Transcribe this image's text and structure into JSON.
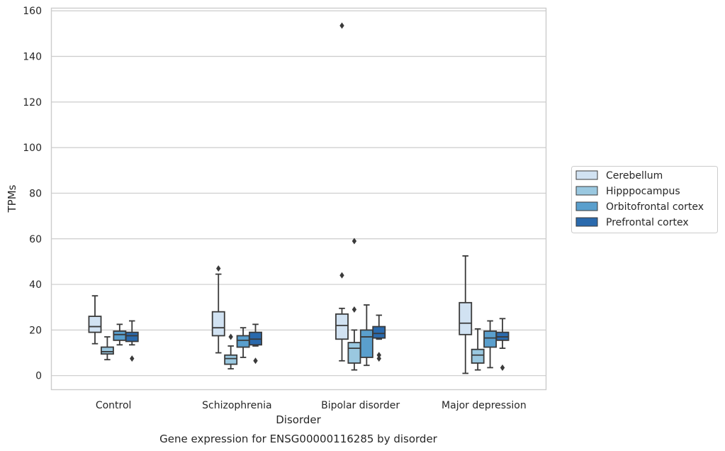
{
  "chart_data": {
    "type": "box",
    "caption": "Gene expression for ENSG00000116285 by disorder",
    "xlabel": "Disorder",
    "ylabel": "TPMs",
    "ylim": [
      -6,
      161
    ],
    "yticks": [
      0,
      20,
      40,
      60,
      80,
      100,
      120,
      140,
      160
    ],
    "grid": true,
    "legend_position": "right",
    "categories": [
      "Control",
      "Schizophrenia",
      "Bipolar disorder",
      "Major depression"
    ],
    "series": [
      {
        "name": "Cerebellum",
        "color": "#d1e2f2",
        "boxes": [
          {
            "whislo": 14,
            "q1": 19,
            "med": 21.5,
            "q3": 26,
            "whishi": 35,
            "fliers": []
          },
          {
            "whislo": 10,
            "q1": 17.5,
            "med": 21,
            "q3": 28,
            "whishi": 44.5,
            "fliers": [
              47
            ]
          },
          {
            "whislo": 6.5,
            "q1": 16,
            "med": 22,
            "q3": 27,
            "whishi": 29.5,
            "fliers": [
              44,
              153.5
            ]
          },
          {
            "whislo": 1,
            "q1": 18,
            "med": 23,
            "q3": 32,
            "whishi": 52.5,
            "fliers": []
          }
        ]
      },
      {
        "name": "Hipppocampus",
        "color": "#9ac8e0",
        "boxes": [
          {
            "whislo": 7,
            "q1": 9.5,
            "med": 10.5,
            "q3": 12.5,
            "whishi": 17,
            "fliers": []
          },
          {
            "whislo": 3,
            "q1": 5,
            "med": 7.5,
            "q3": 9,
            "whishi": 13,
            "fliers": [
              17
            ]
          },
          {
            "whislo": 2.5,
            "q1": 5.5,
            "med": 12,
            "q3": 14.5,
            "whishi": 20,
            "fliers": [
              29,
              59
            ]
          },
          {
            "whislo": 2.5,
            "q1": 5.5,
            "med": 9,
            "q3": 11.5,
            "whishi": 20.5,
            "fliers": []
          }
        ]
      },
      {
        "name": "Orbitofrontal cortex",
        "color": "#5a9fcd",
        "boxes": [
          {
            "whislo": 13.5,
            "q1": 15.5,
            "med": 18,
            "q3": 19.5,
            "whishi": 22.5,
            "fliers": []
          },
          {
            "whislo": 8,
            "q1": 12.5,
            "med": 15.5,
            "q3": 17.5,
            "whishi": 21,
            "fliers": []
          },
          {
            "whislo": 4.5,
            "q1": 8,
            "med": 17,
            "q3": 20,
            "whishi": 31,
            "fliers": []
          },
          {
            "whislo": 3.5,
            "q1": 12.5,
            "med": 16.5,
            "q3": 19.5,
            "whishi": 24,
            "fliers": []
          }
        ]
      },
      {
        "name": "Prefrontal cortex",
        "color": "#2a6aad",
        "boxes": [
          {
            "whislo": 13.5,
            "q1": 15,
            "med": 17.5,
            "q3": 19,
            "whishi": 24,
            "fliers": [
              7.5
            ]
          },
          {
            "whislo": 13,
            "q1": 13.5,
            "med": 16,
            "q3": 19,
            "whishi": 22.5,
            "fliers": [
              6.5
            ]
          },
          {
            "whislo": 16,
            "q1": 16.5,
            "med": 18.5,
            "q3": 21.5,
            "whishi": 26.5,
            "fliers": [
              7.5,
              9
            ]
          },
          {
            "whislo": 12,
            "q1": 15.5,
            "med": 17,
            "q3": 19,
            "whishi": 25,
            "fliers": [
              3.5
            ]
          }
        ]
      }
    ]
  }
}
